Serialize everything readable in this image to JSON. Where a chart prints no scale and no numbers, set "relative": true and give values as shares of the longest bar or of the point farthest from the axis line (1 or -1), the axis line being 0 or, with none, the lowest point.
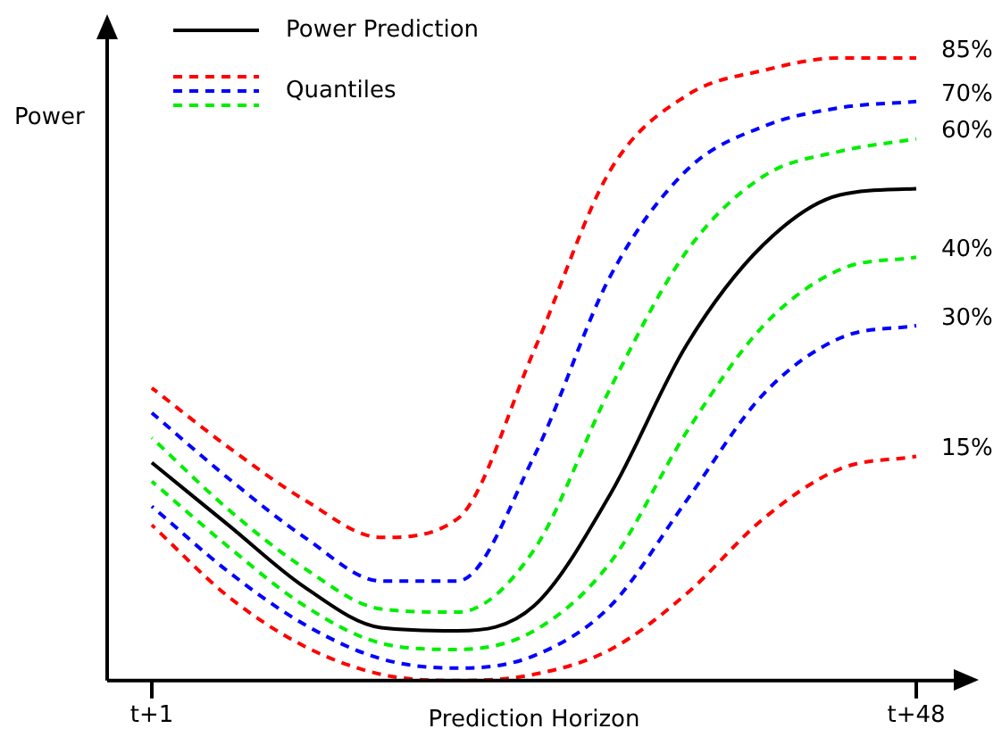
{
  "chart_data": {
    "type": "line",
    "relative": true,
    "xlabel": "Prediction Horizon",
    "ylabel": "Power",
    "legend": "top left",
    "marker": "none",
    "annotations": [
      "Quantiles"
    ],
    "categories": [
      "t+1",
      null,
      null,
      null,
      null,
      null,
      null,
      null,
      null,
      null,
      "t+48"
    ],
    "series": [
      {
        "name": "Power Prediction",
        "color": "#000000",
        "line_style": "solid",
        "values": [
          0.35,
          0.25,
          0.15,
          0.085,
          0.08,
          0.12,
          0.3,
          0.54,
          0.7,
          0.78,
          0.79
        ]
      },
      {
        "name": "85%",
        "color": "#ff0000",
        "line_style": "dashed",
        "values": [
          0.47,
          0.375,
          0.29,
          0.23,
          0.26,
          0.53,
          0.82,
          0.94,
          0.98,
          1.0,
          1.0
        ]
      },
      {
        "name": "70%",
        "color": "#0000ff",
        "line_style": "dashed",
        "values": [
          0.43,
          0.325,
          0.23,
          0.16,
          0.16,
          0.36,
          0.65,
          0.82,
          0.89,
          0.92,
          0.93
        ]
      },
      {
        "name": "60%",
        "color": "#00ee00",
        "line_style": "dashed",
        "values": [
          0.39,
          0.275,
          0.18,
          0.115,
          0.11,
          0.21,
          0.47,
          0.69,
          0.81,
          0.85,
          0.87
        ]
      },
      {
        "name": "40%",
        "color": "#00ee00",
        "line_style": "dashed",
        "values": [
          0.32,
          0.215,
          0.12,
          0.06,
          0.05,
          0.08,
          0.19,
          0.4,
          0.57,
          0.66,
          0.68
        ]
      },
      {
        "name": "30%",
        "color": "#0000ff",
        "line_style": "dashed",
        "values": [
          0.28,
          0.175,
          0.09,
          0.035,
          0.02,
          0.04,
          0.12,
          0.29,
          0.46,
          0.55,
          0.57
        ]
      },
      {
        "name": "15%",
        "color": "#ff0000",
        "line_style": "dashed",
        "values": [
          0.25,
          0.135,
          0.055,
          0.01,
          0.0,
          0.01,
          0.05,
          0.14,
          0.26,
          0.34,
          0.36
        ]
      }
    ]
  }
}
